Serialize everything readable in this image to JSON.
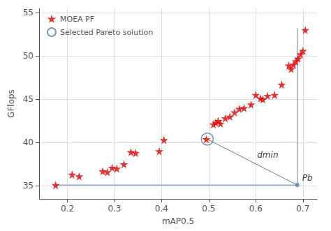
{
  "chart_data": {
    "type": "scatter",
    "xlabel": "mAP0.5",
    "ylabel": "GFlops",
    "xlim": [
      0.14,
      0.73
    ],
    "ylim": [
      33.5,
      55.5
    ],
    "xticks": [
      0.2,
      0.3,
      0.4,
      0.5,
      0.6,
      0.7
    ],
    "yticks": [
      35,
      40,
      45,
      50,
      55
    ],
    "grid": true,
    "legend": "upper left",
    "series": [
      {
        "name": "MOEA PF",
        "type": "scatter",
        "marker": "star",
        "color": "#dd0000",
        "x": [
          0.175,
          0.21,
          0.225,
          0.275,
          0.285,
          0.295,
          0.305,
          0.32,
          0.335,
          0.345,
          0.395,
          0.405,
          0.495,
          0.51,
          0.515,
          0.52,
          0.525,
          0.535,
          0.545,
          0.555,
          0.565,
          0.575,
          0.59,
          0.61,
          0.615,
          0.625,
          0.64,
          0.6,
          0.655,
          0.67,
          0.675,
          0.68,
          0.685,
          0.69,
          0.695,
          0.7,
          0.705
        ],
        "values": [
          35.1,
          36.3,
          36.1,
          36.7,
          36.6,
          37.1,
          37.0,
          37.5,
          38.9,
          38.8,
          39.0,
          40.3,
          40.4,
          42.1,
          42.3,
          42.5,
          42.2,
          42.8,
          43.0,
          43.5,
          43.9,
          44.0,
          44.4,
          45.1,
          45.0,
          45.4,
          45.5,
          45.5,
          46.7,
          48.9,
          48.5,
          49.0,
          49.4,
          49.7,
          50.2,
          50.6,
          53.0
        ]
      },
      {
        "name": "Selected Pareto solution",
        "type": "scatter",
        "marker": "open_circle",
        "color": "#6080a0",
        "x": [
          0.497
        ],
        "values": [
          40.4
        ]
      },
      {
        "type": "scatter",
        "marker": "circle",
        "color": "#6080a0",
        "x": [
          0.688
        ],
        "values": [
          35.1
        ]
      },
      {
        "type": "line",
        "line_style": "solid",
        "color": "#6080a0",
        "x": [
          0.497,
          0.688
        ],
        "values": [
          40.4,
          35.1
        ]
      },
      {
        "type": "line",
        "line_style": "solid",
        "color": "#6080a0",
        "x": [
          0.175,
          0.688
        ],
        "values": [
          35.1,
          35.1
        ]
      },
      {
        "type": "line",
        "line_style": "solid",
        "color": "#6080a0",
        "x": [
          0.688,
          0.688
        ],
        "values": [
          35.1,
          53.2
        ]
      }
    ],
    "annotations": [
      {
        "text": "dmin",
        "x": 0.5925,
        "y": 37.75
      },
      {
        "text": "Pb",
        "x": 0.688,
        "y": 35.1
      }
    ]
  }
}
